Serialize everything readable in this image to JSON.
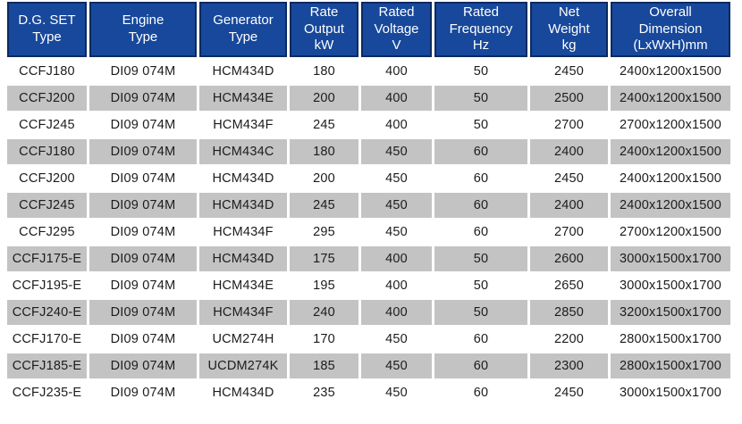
{
  "colors": {
    "header_bg": "#17489B",
    "header_border": "#0A2A60",
    "header_text": "#FFFFFF",
    "stripe_bg": "#C3C3C3",
    "body_text": "#1C1C1C",
    "page_bg": "#FFFFFF"
  },
  "table": {
    "columns": [
      {
        "id": "dg-set-type",
        "label": "D.G. SET\nType"
      },
      {
        "id": "engine-type",
        "label": "Engine\nType"
      },
      {
        "id": "generator-type",
        "label": "Generator\nType"
      },
      {
        "id": "rate-output",
        "label": "Rate\nOutput\nkW"
      },
      {
        "id": "rated-voltage",
        "label": "Rated\nVoltage\nV"
      },
      {
        "id": "rated-frequency",
        "label": "Rated\nFrequency\nHz"
      },
      {
        "id": "net-weight",
        "label": "Net\nWeight\nkg"
      },
      {
        "id": "overall-dimension",
        "label": "Overall\nDimension\n(LxWxH)mm"
      }
    ],
    "rows": [
      [
        "CCFJ180",
        "DI09 074M",
        "HCM434D",
        "180",
        "400",
        "50",
        "2450",
        "2400x1200x1500"
      ],
      [
        "CCFJ200",
        "DI09 074M",
        "HCM434E",
        "200",
        "400",
        "50",
        "2500",
        "2400x1200x1500"
      ],
      [
        "CCFJ245",
        "DI09 074M",
        "HCM434F",
        "245",
        "400",
        "50",
        "2700",
        "2700x1200x1500"
      ],
      [
        "CCFJ180",
        "DI09 074M",
        "HCM434C",
        "180",
        "450",
        "60",
        "2400",
        "2400x1200x1500"
      ],
      [
        "CCFJ200",
        "DI09 074M",
        "HCM434D",
        "200",
        "450",
        "60",
        "2450",
        "2400x1200x1500"
      ],
      [
        "CCFJ245",
        "DI09 074M",
        "HCM434D",
        "245",
        "450",
        "60",
        "2400",
        "2400x1200x1500"
      ],
      [
        "CCFJ295",
        "DI09 074M",
        "HCM434F",
        "295",
        "450",
        "60",
        "2700",
        "2700x1200x1500"
      ],
      [
        "CCFJ175-E",
        "DI09 074M",
        "HCM434D",
        "175",
        "400",
        "50",
        "2600",
        "3000x1500x1700"
      ],
      [
        "CCFJ195-E",
        "DI09 074M",
        "HCM434E",
        "195",
        "400",
        "50",
        "2650",
        "3000x1500x1700"
      ],
      [
        "CCFJ240-E",
        "DI09 074M",
        "HCM434F",
        "240",
        "400",
        "50",
        "2850",
        "3200x1500x1700"
      ],
      [
        "CCFJ170-E",
        "DI09 074M",
        "UCM274H",
        "170",
        "450",
        "60",
        "2200",
        "2800x1500x1700"
      ],
      [
        "CCFJ185-E",
        "DI09 074M",
        "UCDM274K",
        "185",
        "450",
        "60",
        "2300",
        "2800x1500x1700"
      ],
      [
        "CCFJ235-E",
        "DI09 074M",
        "HCM434D",
        "235",
        "450",
        "60",
        "2450",
        "3000x1500x1700"
      ]
    ]
  }
}
